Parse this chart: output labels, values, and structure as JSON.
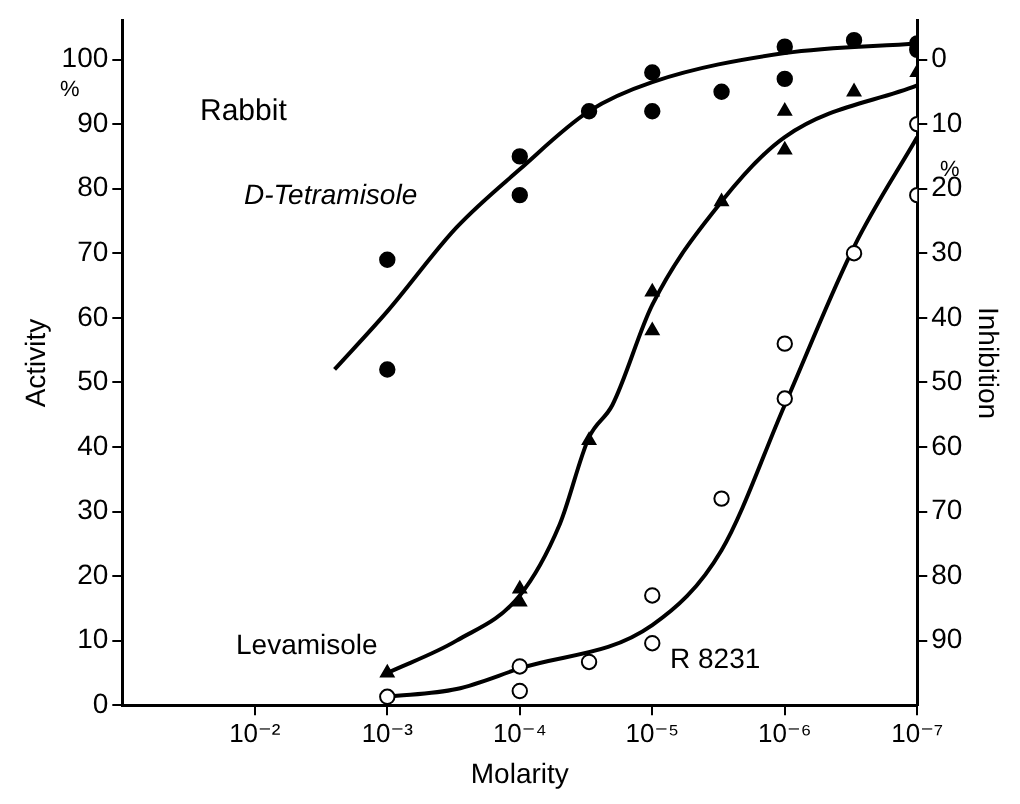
{
  "chart_data": {
    "type": "scatter",
    "xlabel": "Molarity",
    "ylabel": "Activity",
    "y2label": "Inhibition",
    "annotations": [
      "Rabbit",
      "%",
      "%"
    ],
    "log": "x",
    "xlim": [
      0.1,
      1e-07
    ],
    "xticks": [
      {
        "value": 0.01,
        "label": "10⁻²"
      },
      {
        "value": 0.001,
        "label": "10⁻³"
      },
      {
        "value": 0.0001,
        "label": "10⁻⁴"
      },
      {
        "value": 1e-05,
        "label": "10⁻⁵"
      },
      {
        "value": 1e-06,
        "label": "10⁻⁶"
      },
      {
        "value": 1e-07,
        "label": "10⁻⁷"
      }
    ],
    "ylim": [
      0,
      106
    ],
    "yticks": [
      0,
      10,
      20,
      30,
      40,
      50,
      60,
      70,
      80,
      90,
      100
    ],
    "y2lim": [
      100,
      -6
    ],
    "y2ticks": [
      0,
      10,
      20,
      30,
      40,
      50,
      60,
      70,
      80,
      90
    ],
    "grid": false,
    "legend": false,
    "series": [
      {
        "name": "D-Tetramisole",
        "type": "scatter",
        "marker": "circle",
        "color": "#000000",
        "x": [
          0.001,
          0.001,
          0.0001,
          0.0001,
          3e-05,
          1e-05,
          1e-05,
          3e-06,
          1e-06,
          1e-06,
          3e-07,
          1e-07,
          1e-07
        ],
        "values": [
          69,
          52,
          85,
          79,
          92,
          98,
          92,
          95,
          102,
          97,
          103,
          102.5,
          101.5
        ]
      },
      {
        "name": "Levamisole",
        "type": "scatter",
        "marker": "triangle",
        "color": "#000000",
        "x": [
          0.001,
          0.0001,
          0.0001,
          3e-05,
          1e-05,
          1e-05,
          3e-06,
          1e-06,
          1e-06,
          3e-07,
          1e-07
        ],
        "values": [
          5,
          18,
          16,
          41,
          64,
          58,
          78,
          92,
          86,
          95,
          98
        ]
      },
      {
        "name": "R 8231",
        "type": "scatter",
        "marker": "circle",
        "color": "#ffffff",
        "x": [
          0.001,
          0.0001,
          0.0001,
          3e-05,
          1e-05,
          1e-05,
          3e-06,
          1e-06,
          1e-06,
          3e-07,
          1e-07,
          1e-07
        ],
        "values": [
          1.3,
          6,
          2.2,
          6.7,
          17,
          9.6,
          32,
          56,
          47.5,
          70,
          90,
          79
        ]
      },
      {
        "type": "line",
        "marker": "none",
        "color": "#000000",
        "x": [
          0.0025,
          0.001,
          0.0003,
          0.0001,
          3e-05,
          1e-05,
          1e-06,
          1e-07
        ],
        "values": [
          52,
          61,
          74,
          83,
          92,
          96.5,
          101,
          102.5
        ]
      },
      {
        "type": "line",
        "marker": "none",
        "color": "#000000",
        "x": [
          0.001,
          0.0003,
          0.0001,
          5e-05,
          3e-05,
          2e-05,
          1e-05,
          3e-06,
          1e-06,
          1e-07
        ],
        "values": [
          5,
          10,
          17,
          28,
          41.5,
          46.5,
          62,
          78,
          88,
          96
        ]
      },
      {
        "type": "line",
        "marker": "none",
        "color": "#000000",
        "x": [
          0.001,
          0.0003,
          0.0001,
          1e-05,
          3e-06,
          1e-06,
          3e-07,
          1e-07
        ],
        "values": [
          1.3,
          2.5,
          5.7,
          12.4,
          24,
          46.5,
          71,
          88
        ]
      }
    ]
  }
}
